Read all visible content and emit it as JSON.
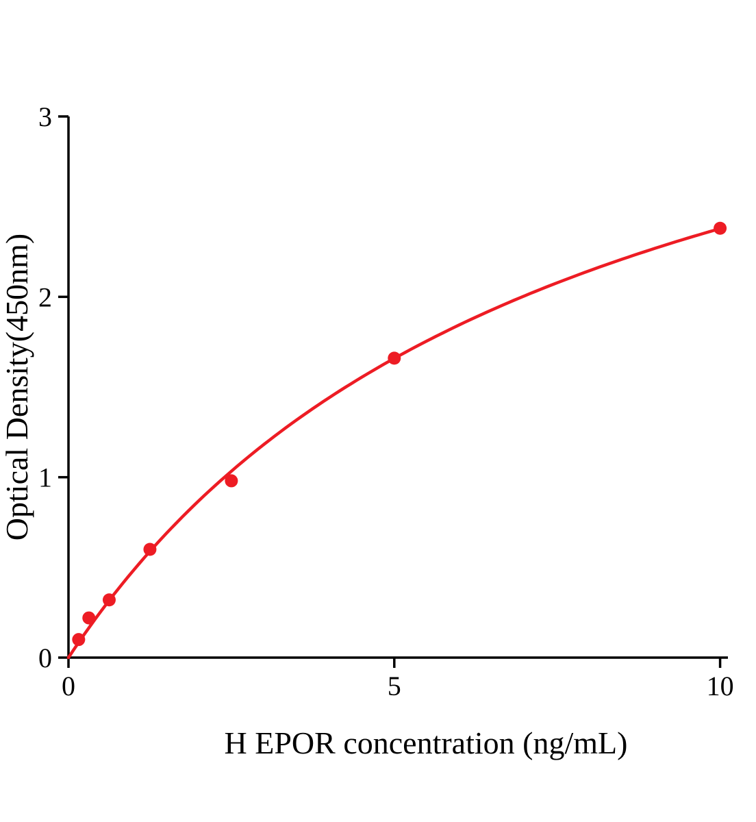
{
  "chart_data": {
    "type": "scatter",
    "title": "",
    "xlabel": "H EPOR concentration (ng/mL)",
    "ylabel": "Optical Density(450nm)",
    "x": [
      0.156,
      0.313,
      0.625,
      1.25,
      2.5,
      5,
      10
    ],
    "y": [
      0.1,
      0.22,
      0.32,
      0.6,
      0.98,
      1.66,
      2.38
    ],
    "xlim": [
      0,
      10.12
    ],
    "ylim": [
      0,
      3
    ],
    "xticks": [
      0,
      5,
      10
    ],
    "yticks": [
      0,
      1,
      2,
      3
    ],
    "grid": false,
    "legend": null,
    "line_color": "#ed1c24",
    "marker_color": "#ed1c24",
    "axis_color": "#000000",
    "curve_fit": {
      "type": "michaelis-menten",
      "vmax": 4.2,
      "km": 7.66
    }
  }
}
